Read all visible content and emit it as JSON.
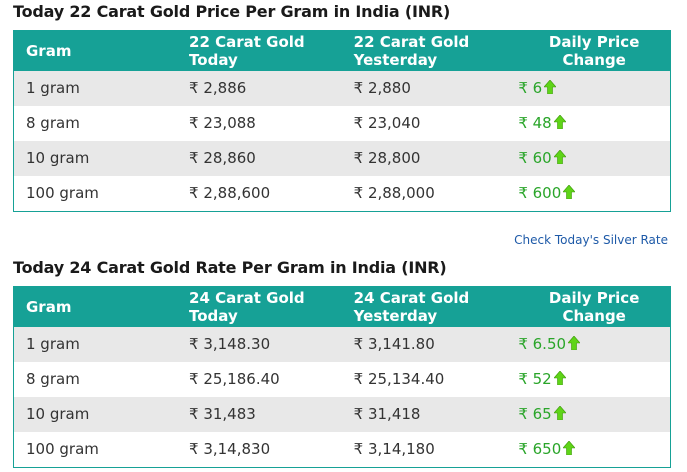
{
  "table22": {
    "title": "Today 22 Carat Gold Price Per Gram in India (INR)",
    "headers": {
      "gram": "Gram",
      "today_l1": "22 Carat Gold",
      "today_l2": "Today",
      "yesterday_l1": "22 Carat Gold",
      "yesterday_l2": "Yesterday",
      "change": "Daily Price Change"
    },
    "rows": [
      {
        "gram": "1 gram",
        "today": "₹ 2,886",
        "yesterday": "₹ 2,880",
        "change": "₹ 6"
      },
      {
        "gram": "8 gram",
        "today": "₹ 23,088",
        "yesterday": "₹ 23,040",
        "change": "₹ 48"
      },
      {
        "gram": "10 gram",
        "today": "₹ 28,860",
        "yesterday": "₹ 28,800",
        "change": "₹ 60"
      },
      {
        "gram": "100 gram",
        "today": "₹ 2,88,600",
        "yesterday": "₹ 2,88,000",
        "change": "₹ 600"
      }
    ]
  },
  "silver_link": "Check Today's Silver Rate",
  "table24": {
    "title": "Today 24 Carat Gold Rate Per Gram in India (INR)",
    "headers": {
      "gram": "Gram",
      "today_l1": "24 Carat Gold",
      "today_l2": "Today",
      "yesterday_l1": "24 Carat Gold",
      "yesterday_l2": "Yesterday",
      "change": "Daily Price Change"
    },
    "rows": [
      {
        "gram": "1 gram",
        "today": "₹ 3,148.30",
        "yesterday": "₹ 3,141.80",
        "change": "₹ 6.50"
      },
      {
        "gram": "8 gram",
        "today": "₹ 25,186.40",
        "yesterday": "₹ 25,134.40",
        "change": "₹ 52"
      },
      {
        "gram": "10 gram",
        "today": "₹ 31,483",
        "yesterday": "₹ 31,418",
        "change": "₹ 65"
      },
      {
        "gram": "100 gram",
        "today": "₹ 3,14,830",
        "yesterday": "₹ 3,14,180",
        "change": "₹ 650"
      }
    ]
  },
  "colors": {
    "header_bg": "#16a196",
    "change_text": "#2aa52a",
    "arrow": "#5fd418",
    "link": "#1e5aa8"
  },
  "icons": {
    "trend": "up-arrow-icon"
  }
}
